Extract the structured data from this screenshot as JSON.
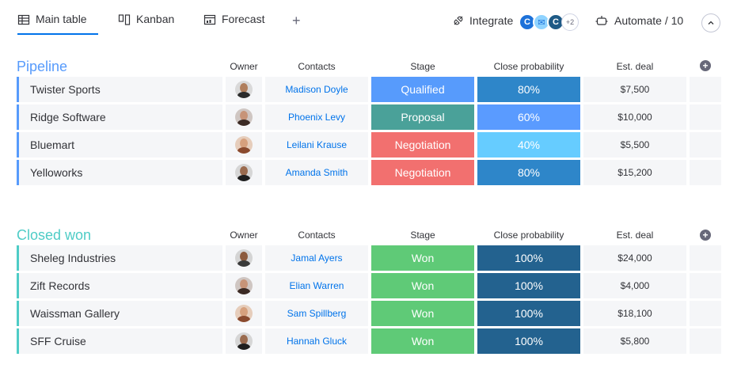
{
  "tabs": [
    {
      "label": "Main table",
      "icon": "table-icon"
    },
    {
      "label": "Kanban",
      "icon": "kanban-icon"
    },
    {
      "label": "Forecast",
      "icon": "forecast-icon"
    }
  ],
  "add_tab": "+",
  "integrate": {
    "label": "Integrate",
    "logos": [
      "C",
      "✉",
      "C"
    ],
    "more": "+2"
  },
  "automate": {
    "label": "Automate / 10"
  },
  "columns": {
    "owner": "Owner",
    "contacts": "Contacts",
    "stage": "Stage",
    "prob": "Close probability",
    "deal": "Est. deal"
  },
  "colors": {
    "accent": "#0073ea",
    "pipeline_title": "#579bfc",
    "closed_title": "#4eccc6",
    "qualified": "#579bfc",
    "proposal": "#4aa199",
    "negotiation": "#f2706f",
    "won": "#5fca77",
    "prob_80": "#2e86c9",
    "prob_60": "#5a9bff",
    "prob_40": "#66ccff",
    "prob_100": "#23628f"
  },
  "groups": [
    {
      "title": "Pipeline",
      "rows": [
        {
          "name": "Twister Sports",
          "contact": "Madison Doyle",
          "stage": "Qualified",
          "prob": "80%",
          "deal": "$7,500"
        },
        {
          "name": "Ridge Software",
          "contact": "Phoenix Levy",
          "stage": "Proposal",
          "prob": "60%",
          "deal": "$10,000"
        },
        {
          "name": "Bluemart",
          "contact": "Leilani Krause",
          "stage": "Negotiation",
          "prob": "40%",
          "deal": "$5,500"
        },
        {
          "name": "Yelloworks",
          "contact": "Amanda Smith",
          "stage": "Negotiation",
          "prob": "80%",
          "deal": "$15,200"
        }
      ]
    },
    {
      "title": "Closed won",
      "rows": [
        {
          "name": "Sheleg Industries",
          "contact": "Jamal Ayers",
          "stage": "Won",
          "prob": "100%",
          "deal": "$24,000"
        },
        {
          "name": "Zift Records",
          "contact": "Elian Warren",
          "stage": "Won",
          "prob": "100%",
          "deal": "$4,000"
        },
        {
          "name": "Waissman Gallery",
          "contact": "Sam Spillberg",
          "stage": "Won",
          "prob": "100%",
          "deal": "$18,100"
        },
        {
          "name": "SFF Cruise",
          "contact": "Hannah Gluck",
          "stage": "Won",
          "prob": "100%",
          "deal": "$5,800"
        }
      ]
    }
  ]
}
